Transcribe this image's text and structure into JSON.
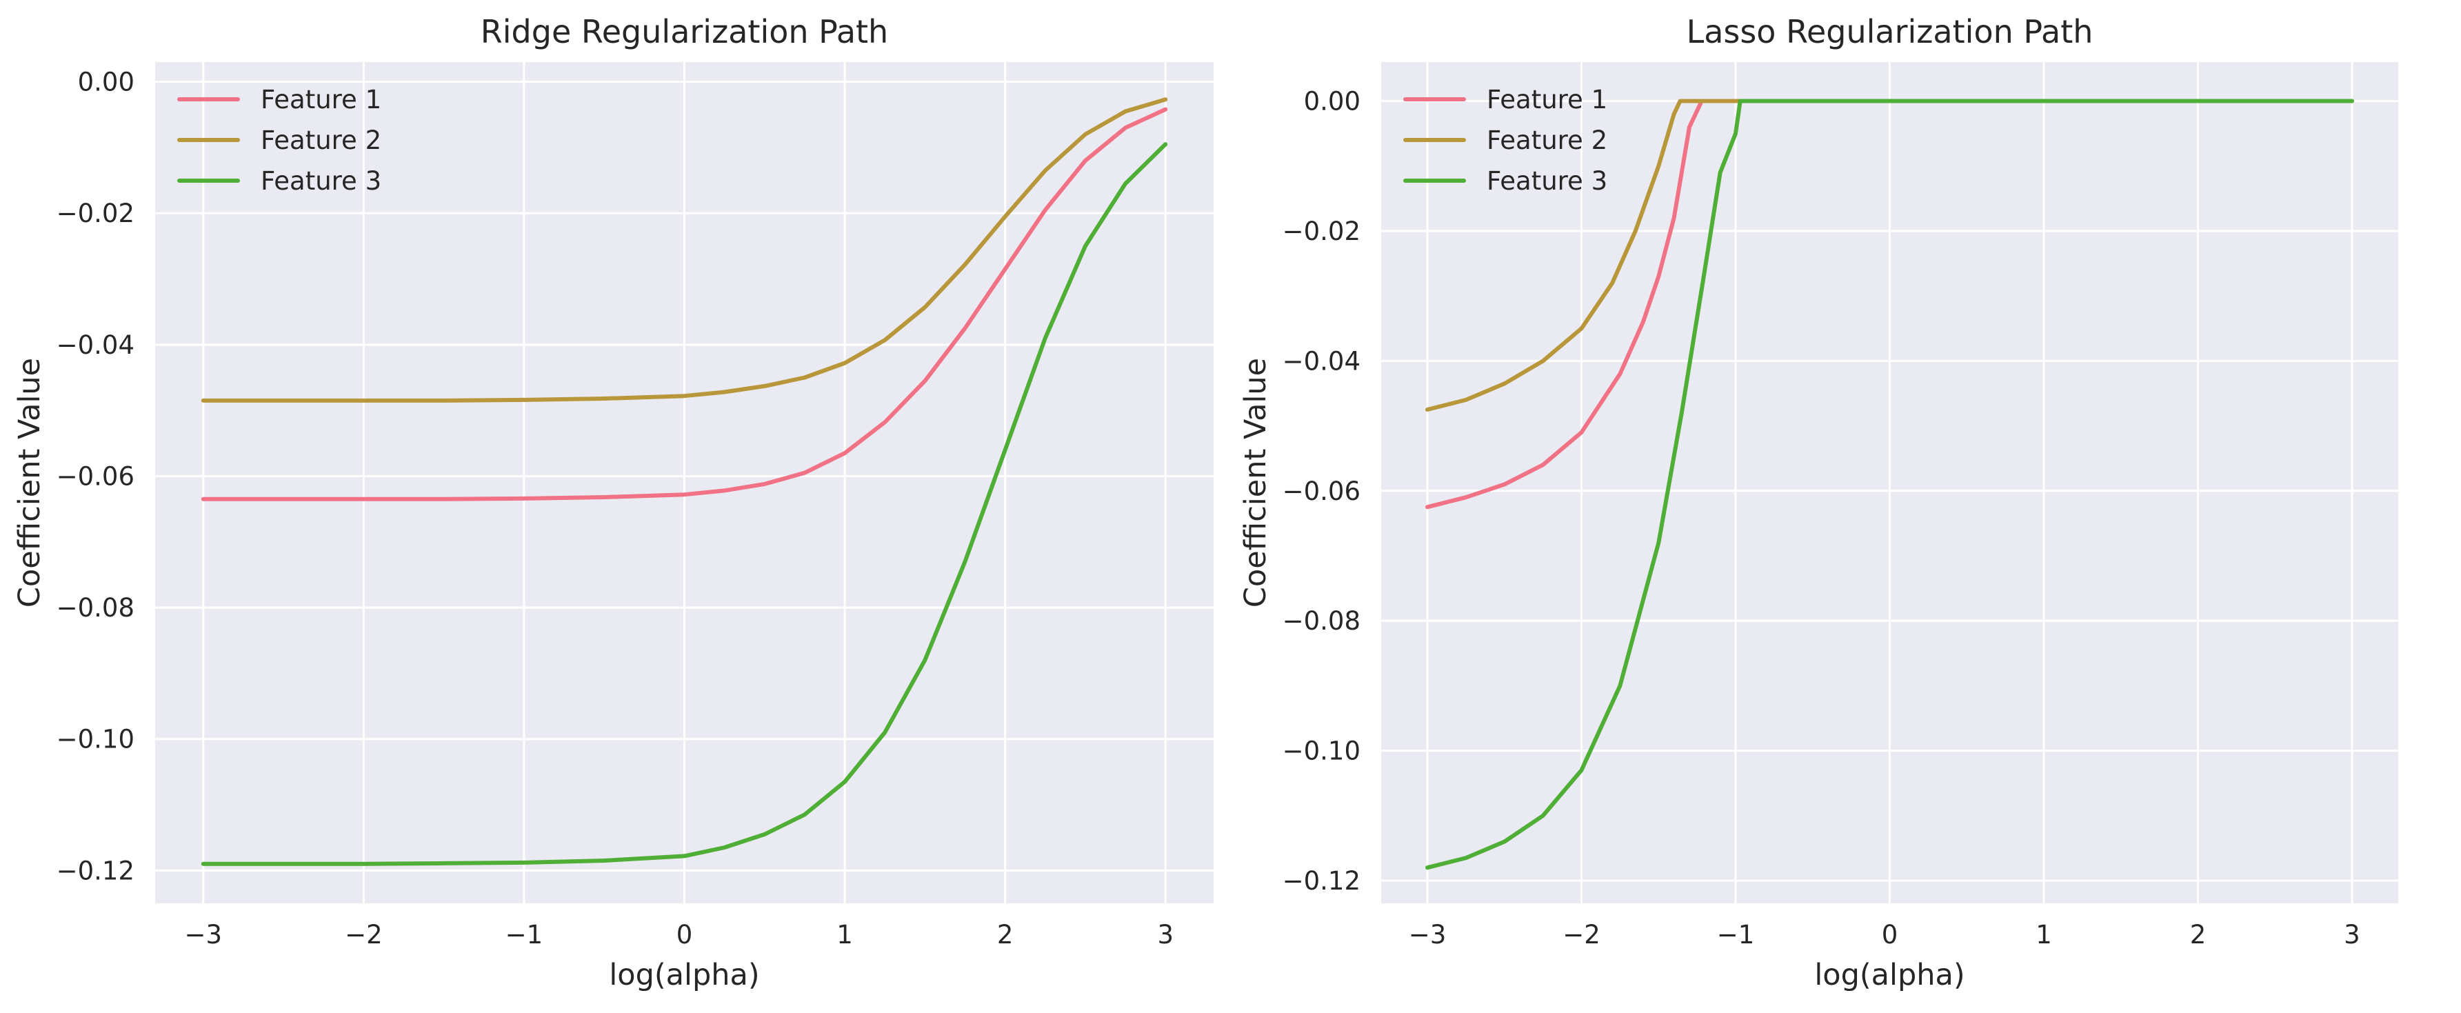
{
  "chart_data": [
    {
      "type": "line",
      "title": "Ridge Regularization Path",
      "xlabel": "log(alpha)",
      "ylabel": "Coefficient Value",
      "xlim": [
        -3.3,
        3.3
      ],
      "ylim": [
        -0.125,
        0.003
      ],
      "xticks": [
        -3,
        -2,
        -1,
        0,
        1,
        2,
        3
      ],
      "xtick_labels": [
        "−3",
        "−2",
        "−1",
        "0",
        "1",
        "2",
        "3"
      ],
      "yticks": [
        0.0,
        -0.02,
        -0.04,
        -0.06,
        -0.08,
        -0.1,
        -0.12
      ],
      "ytick_labels": [
        "0.00",
        "−0.02",
        "−0.04",
        "−0.06",
        "−0.08",
        "−0.10",
        "−0.12"
      ],
      "grid": true,
      "legend": "top-left",
      "x": [
        -3,
        -2.5,
        -2,
        -1.5,
        -1,
        -0.5,
        0,
        0.25,
        0.5,
        0.75,
        1,
        1.25,
        1.5,
        1.75,
        2,
        2.25,
        2.5,
        2.75,
        3
      ],
      "series": [
        {
          "name": "Feature 1",
          "color": "#f07284",
          "values": [
            -0.0635,
            -0.0635,
            -0.0635,
            -0.0635,
            -0.0634,
            -0.0632,
            -0.0628,
            -0.0622,
            -0.0612,
            -0.0595,
            -0.0565,
            -0.0518,
            -0.0455,
            -0.0375,
            -0.0285,
            -0.0195,
            -0.012,
            -0.007,
            -0.0042
          ]
        },
        {
          "name": "Feature 2",
          "color": "#b8973a",
          "values": [
            -0.0485,
            -0.0485,
            -0.0485,
            -0.0485,
            -0.0484,
            -0.0482,
            -0.0478,
            -0.0472,
            -0.0463,
            -0.045,
            -0.0428,
            -0.0393,
            -0.0343,
            -0.0278,
            -0.0205,
            -0.0135,
            -0.008,
            -0.0045,
            -0.0027
          ]
        },
        {
          "name": "Feature 3",
          "color": "#4fae36",
          "values": [
            -0.119,
            -0.119,
            -0.119,
            -0.1189,
            -0.1188,
            -0.1185,
            -0.1178,
            -0.1165,
            -0.1145,
            -0.1115,
            -0.1065,
            -0.099,
            -0.088,
            -0.073,
            -0.056,
            -0.039,
            -0.025,
            -0.0155,
            -0.0095
          ]
        }
      ]
    },
    {
      "type": "line",
      "title": "Lasso Regularization Path",
      "xlabel": "log(alpha)",
      "ylabel": "Coefficient Value",
      "xlim": [
        -3.3,
        3.3
      ],
      "ylim": [
        -0.1235,
        0.006
      ],
      "xticks": [
        -3,
        -2,
        -1,
        0,
        1,
        2,
        3
      ],
      "xtick_labels": [
        "−3",
        "−2",
        "−1",
        "0",
        "1",
        "2",
        "3"
      ],
      "yticks": [
        0.0,
        -0.02,
        -0.04,
        -0.06,
        -0.08,
        -0.1,
        -0.12
      ],
      "ytick_labels": [
        "0.00",
        "−0.02",
        "−0.04",
        "−0.06",
        "−0.08",
        "−0.10",
        "−0.12"
      ],
      "grid": true,
      "legend": "top-left",
      "series": [
        {
          "name": "Feature 1",
          "color": "#f07284",
          "x": [
            -3,
            -2.75,
            -2.5,
            -2.25,
            -2.0,
            -1.75,
            -1.6,
            -1.5,
            -1.4,
            -1.3,
            -1.22,
            -1.18,
            3
          ],
          "values": [
            -0.0625,
            -0.061,
            -0.059,
            -0.056,
            -0.051,
            -0.042,
            -0.034,
            -0.027,
            -0.018,
            -0.004,
            0.0,
            0.0,
            0.0
          ]
        },
        {
          "name": "Feature 2",
          "color": "#b8973a",
          "x": [
            -3,
            -2.75,
            -2.5,
            -2.25,
            -2.0,
            -1.8,
            -1.65,
            -1.5,
            -1.4,
            -1.36,
            -1.33,
            3
          ],
          "values": [
            -0.0475,
            -0.046,
            -0.0435,
            -0.04,
            -0.035,
            -0.028,
            -0.02,
            -0.01,
            -0.002,
            0.0,
            0.0,
            0.0
          ]
        },
        {
          "name": "Feature 3",
          "color": "#4fae36",
          "x": [
            -3,
            -2.75,
            -2.5,
            -2.25,
            -2.0,
            -1.75,
            -1.5,
            -1.35,
            -1.2,
            -1.1,
            -1.0,
            -0.97,
            -0.93,
            3
          ],
          "values": [
            -0.118,
            -0.1165,
            -0.114,
            -0.11,
            -0.103,
            -0.09,
            -0.068,
            -0.048,
            -0.026,
            -0.011,
            -0.005,
            0.0,
            0.0,
            0.0
          ]
        }
      ]
    }
  ]
}
